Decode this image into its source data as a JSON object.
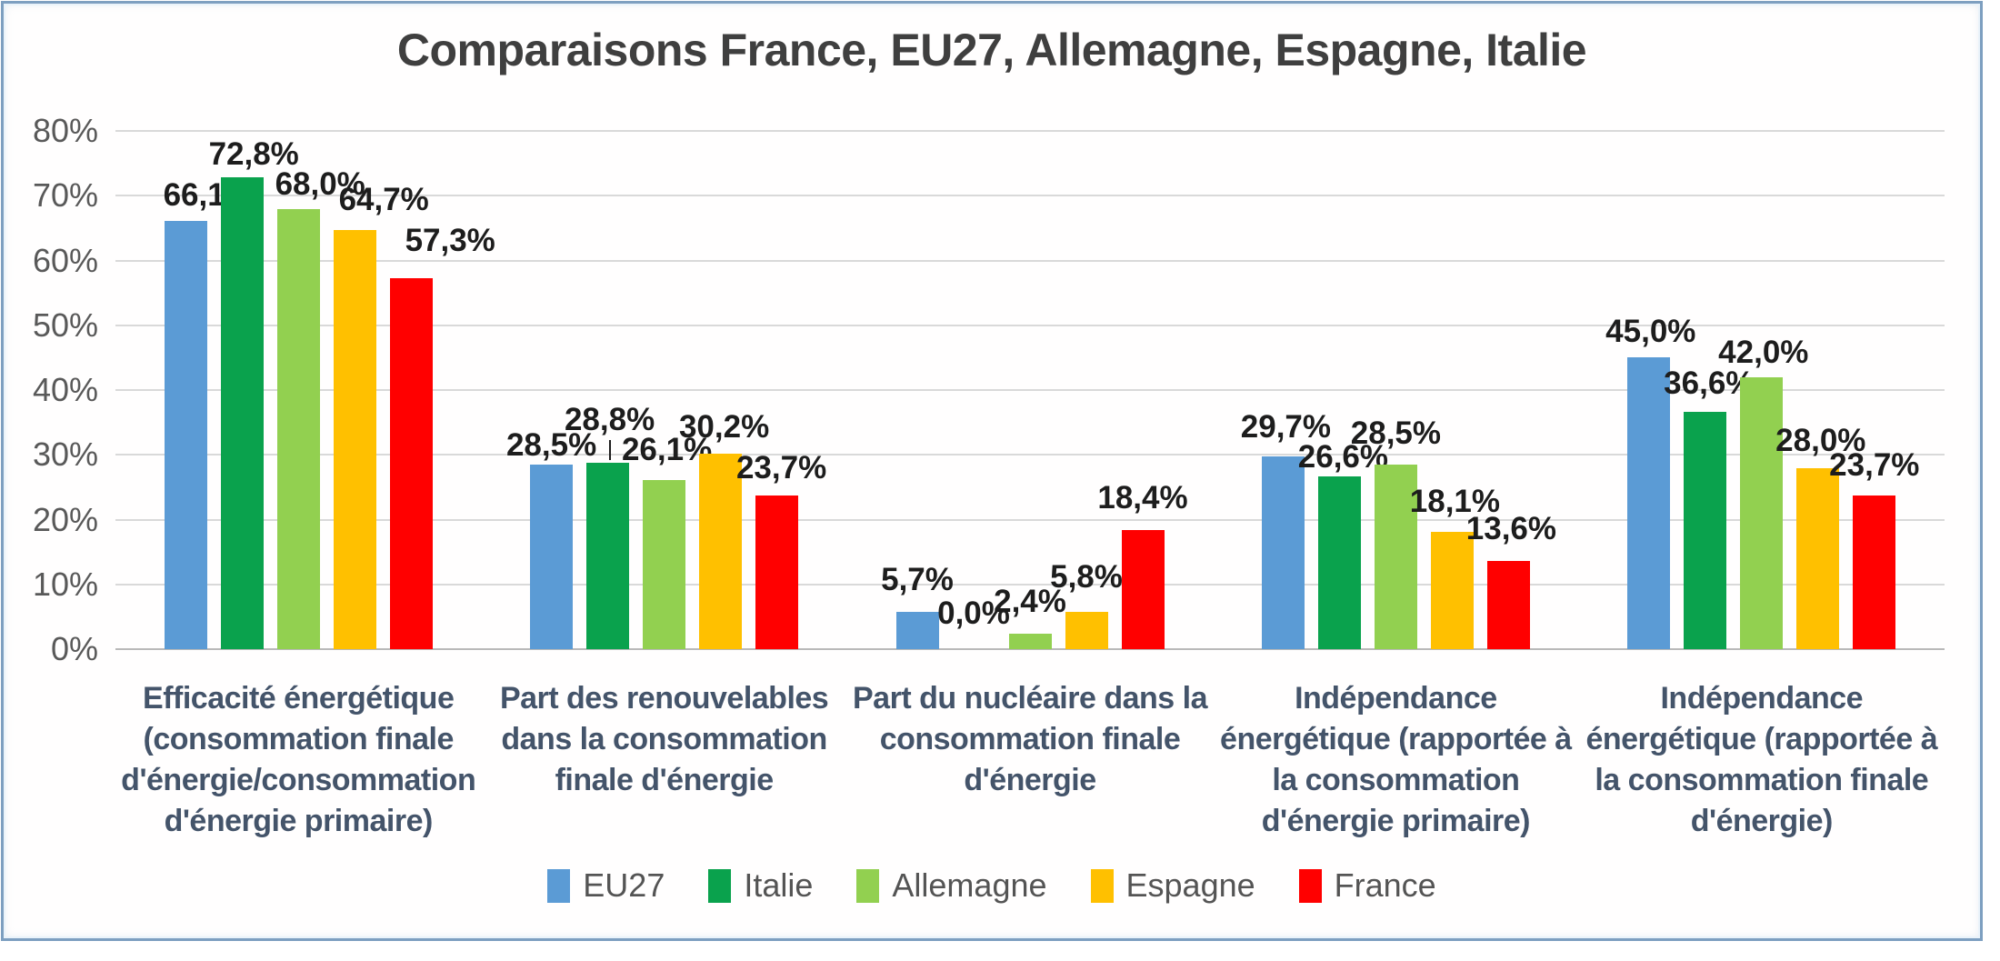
{
  "chart_data": {
    "type": "bar",
    "title": "Comparaisons France, EU27, Allemagne, Espagne, Italie",
    "categories": [
      "Efficacité énergétique\n(consommation finale\nd'énergie/consommation\nd'énergie primaire)",
      "Part des renouvelables\ndans la consommation\nfinale d'énergie",
      "Part du nucléaire dans la\nconsommation finale\nd'énergie",
      "Indépendance\nénergétique (rapportée à\nla consommation\nd'énergie primaire)",
      "Indépendance\nénergétique (rapportée à\nla consommation finale\nd'énergie)"
    ],
    "series": [
      {
        "name": "EU27",
        "color": "#5B9BD5",
        "values": [
          66.1,
          28.5,
          5.7,
          29.7,
          45.0
        ],
        "labels": [
          "66,1%",
          "28,5%",
          "5,7%",
          "29,7%",
          "45,0%"
        ]
      },
      {
        "name": "Italie",
        "color": "#0AA24D",
        "values": [
          72.8,
          28.8,
          0.0,
          26.6,
          36.6
        ],
        "labels": [
          "72,8%",
          "28,8%",
          "0,0%",
          "26,6%",
          "36,6%"
        ]
      },
      {
        "name": "Allemagne",
        "color": "#92D050",
        "values": [
          68.0,
          26.1,
          2.4,
          28.5,
          42.0
        ],
        "labels": [
          "68,0%",
          "26,1%",
          "2,4%",
          "28,5%",
          "42,0%"
        ]
      },
      {
        "name": "Espagne",
        "color": "#FFC000",
        "values": [
          64.7,
          30.2,
          5.8,
          18.1,
          28.0
        ],
        "labels": [
          "64,7%",
          "30,2%",
          "5,8%",
          "18,1%",
          "28,0%"
        ]
      },
      {
        "name": "France",
        "color": "#FF0000",
        "values": [
          57.3,
          23.7,
          18.4,
          13.6,
          23.7
        ],
        "labels": [
          "57,3%",
          "23,7%",
          "18,4%",
          "13,6%",
          "23,7%"
        ]
      }
    ],
    "y_axis": {
      "ticks": [
        "80%",
        "70%",
        "60%",
        "50%",
        "40%",
        "30%",
        "20%",
        "10%",
        "0%"
      ],
      "min": 0,
      "max": 80,
      "step": 10
    },
    "legend": [
      "EU27",
      "Italie",
      "Allemagne",
      "Espagne",
      "France"
    ],
    "legend_position": "bottom",
    "grid": true
  },
  "colors": {
    "frame_border": "#7d9fc0",
    "grid_line": "#d9d9d9",
    "axis_line": "#b9b9b9",
    "title_text": "#3f3f3f",
    "tick_text": "#595959",
    "category_text": "#44546A",
    "data_label_text": "#1d1d1d",
    "legend_text": "#545454"
  }
}
